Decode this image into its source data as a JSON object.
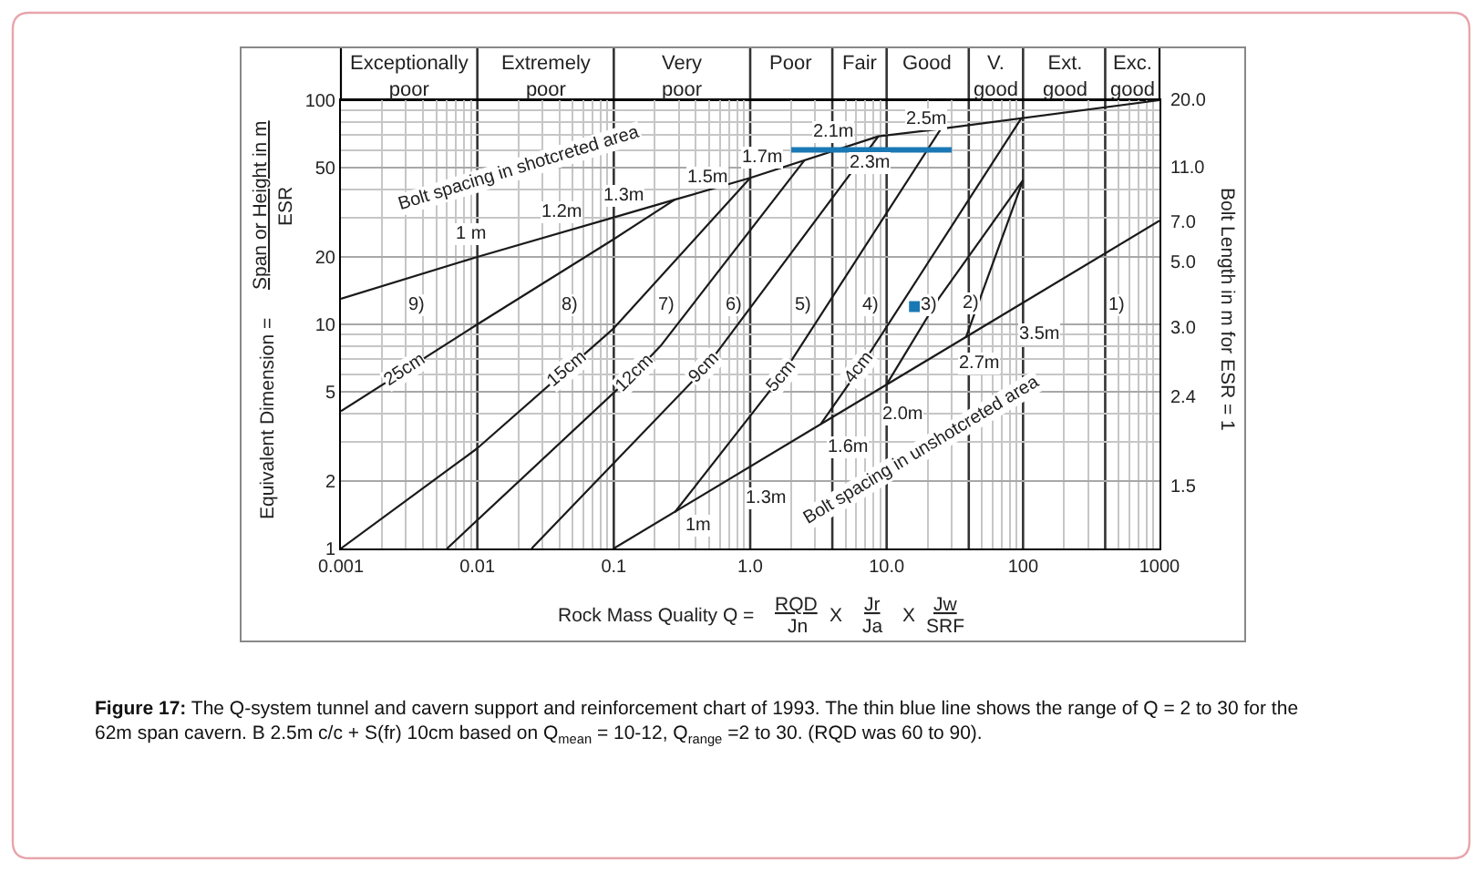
{
  "chart_data": {
    "type": "line",
    "xlabel": "Rock Mass Quality Q =",
    "ylabel": "Equivalent Dimension =",
    "log": "xy",
    "xlim": [
      0.001,
      1000
    ],
    "xticks": [
      0.001,
      0.01,
      0.1,
      {
        "value": 1,
        "label": "1.0"
      },
      {
        "value": 10,
        "label": "10.0"
      },
      100,
      1000
    ],
    "ylim": [
      1,
      100
    ],
    "yticks": [
      1,
      2,
      5,
      10,
      20,
      50,
      100
    ],
    "grid": true,
    "ref_lines": [
      {
        "axis": "x",
        "value": 0.01
      },
      {
        "axis": "x",
        "value": 0.1
      },
      {
        "axis": "x",
        "value": 1
      },
      {
        "axis": "x",
        "value": 4
      },
      {
        "axis": "x",
        "value": 10
      },
      {
        "axis": "x",
        "value": 40
      },
      {
        "axis": "x",
        "value": 100
      },
      {
        "axis": "x",
        "value": 400
      }
    ],
    "series": [
      {
        "color": "#1a1a1a",
        "x": [
          0.001,
          0.01,
          0.1,
          0.28,
          1,
          8.7,
          25,
          1000
        ],
        "values": [
          13,
          20,
          30,
          36,
          45,
          69,
          74.5,
          100
        ]
      },
      {
        "color": "#1a1a1a",
        "x": [
          0.1,
          1000
        ],
        "values": [
          1,
          29
        ]
      },
      {
        "color": "#1a1a1a",
        "x": [
          0.001,
          0.01,
          0.1,
          0.28
        ],
        "values": [
          4.1,
          10,
          24,
          36
        ]
      },
      {
        "color": "#1a1a1a",
        "x": [
          0.001,
          0.01,
          0.1,
          1
        ],
        "values": [
          1,
          2.8,
          9.6,
          45
        ]
      },
      {
        "color": "#1a1a1a",
        "x": [
          0.006,
          0.14,
          0.22,
          2.5
        ],
        "values": [
          1,
          6,
          8,
          54
        ]
      },
      {
        "color": "#1a1a1a",
        "x": [
          0.025,
          0.47,
          8.7
        ],
        "values": [
          1,
          6.4,
          69
        ]
      },
      {
        "color": "#1a1a1a",
        "x": [
          0.28,
          1.7,
          25
        ],
        "values": [
          1.45,
          5.9,
          74.5
        ]
      },
      {
        "color": "#1a1a1a",
        "x": [
          3.3,
          6.4,
          97
        ],
        "values": [
          3.6,
          6.4,
          83
        ]
      },
      {
        "color": "#1a1a1a",
        "x": [
          10,
          24,
          100
        ],
        "values": [
          5.4,
          13,
          44
        ]
      },
      {
        "color": "#1a1a1a",
        "x": [
          38,
          100
        ],
        "values": [
          8.7,
          44
        ]
      },
      {
        "color": "#1a78b4",
        "x": [
          2,
          30
        ],
        "values": [
          60,
          60
        ]
      },
      {
        "type": "scatter",
        "marker": "square",
        "color": "#1a78b4",
        "x": [
          16
        ],
        "values": [
          12
        ]
      }
    ],
    "annotations": [
      "Exceptionally\npoor",
      "Extremely\npoor",
      "Very\npoor",
      "Poor",
      "Fair",
      "Good",
      "V.\ngood",
      "Ext.\ngood",
      "Exc.\ngood",
      "Bolt spacing in shotcreted area",
      "1 m",
      "1.2m",
      "1.3m",
      "1.5m",
      "1.7m",
      "2.1m",
      "2.3m",
      "2.5m",
      "9)",
      "8)",
      "7)",
      "6)",
      "5)",
      "4)",
      "3)",
      "2)",
      "1)",
      "1m",
      "1.3m",
      "1.6m",
      "2.0m",
      "3.5m",
      "Bolt spacing in unshotcreted area",
      "20.0",
      "11.0",
      "7.0",
      "5.0",
      "3.0",
      "2.4",
      "1.5",
      "Bolt Length in m for ESR = 1",
      "RQD",
      "Jn",
      "X",
      "Jr",
      "Ja",
      "X",
      "Jw",
      "SRF",
      "Span or Height in m",
      "ESR",
      {
        "text": "25cm",
        "x": 0.0029,
        "y": 6.2
      },
      {
        "text": "15cm",
        "x": 0.046,
        "y": 6.3
      },
      {
        "text": "12cm",
        "x": 0.14,
        "y": 6
      },
      {
        "text": "9cm",
        "x": 0.47,
        "y": 6.4
      },
      {
        "text": "5cm",
        "x": 1.7,
        "y": 5.9
      },
      {
        "text": "4cm",
        "x": 6.4,
        "y": 6.4
      },
      {
        "text": "2.7m",
        "x": 38,
        "y": 8.7
      },
      "Figure 17: The Q-system tunnel and cavern support and reinforcement chart of 1993. The thin blue line shows the range of Q = 2 to 30 for the\n62m span cavern. B 2.5m c/c + S(fr) 10cm based on Q$_{mean}$ = 10-12, Q$_{range}$ =2 to 30. (RQD was 60 to 90)."
    ]
  }
}
